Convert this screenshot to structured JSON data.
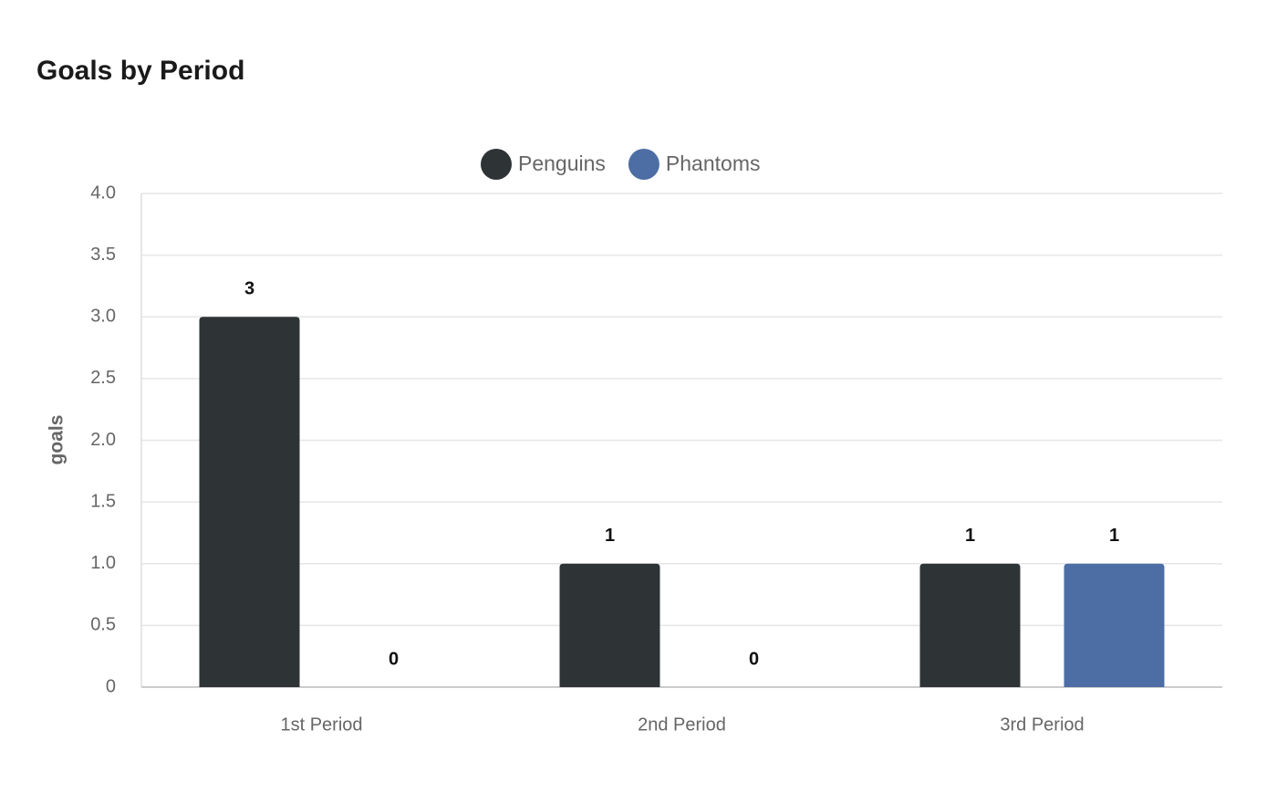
{
  "chart_data": {
    "type": "bar",
    "title": "Goals by Period",
    "y_label": "goals",
    "categories": [
      "1st Period",
      "2nd Period",
      "3rd Period"
    ],
    "series": [
      {
        "name": "Penguins",
        "color": "#2e3436",
        "values": [
          3,
          1,
          1
        ]
      },
      {
        "name": "Phantoms",
        "color": "#4c6ea5",
        "values": [
          0,
          0,
          1
        ]
      }
    ],
    "ylim": [
      0,
      4
    ],
    "yticks": [
      0,
      0.5,
      {
        "value": 1,
        "label": "1.0"
      },
      1.5,
      {
        "value": 2,
        "label": "2.0"
      },
      2.5,
      {
        "value": 3,
        "label": "3.0"
      },
      3.5,
      {
        "value": 4,
        "label": "4.0"
      }
    ],
    "grid": true,
    "legend": "top"
  }
}
